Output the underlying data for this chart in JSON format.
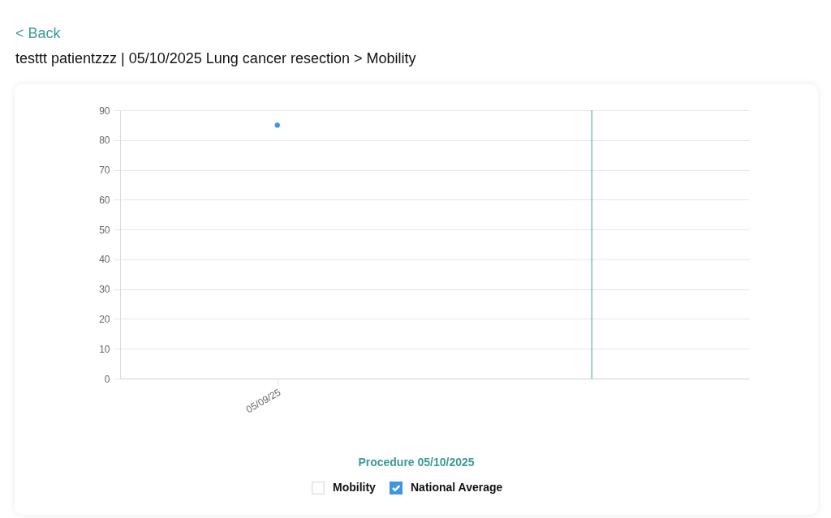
{
  "chart_data": {
    "type": "line",
    "title": "testtt patientzzz | 05/10/2025 Lung cancer resection > Mobility",
    "annotations": [
      "< Back"
    ],
    "categories": [
      "05/09/25",
      null
    ],
    "series": [
      {
        "name": "Mobility",
        "values": [
          null,
          null
        ]
      },
      {
        "name": "National Average",
        "color": "#3e95e3",
        "values": [
          85,
          null
        ]
      }
    ],
    "ylim": [
      0,
      90
    ],
    "yticks": [
      0,
      10,
      20,
      30,
      40,
      50,
      60,
      70,
      80,
      90
    ],
    "ref_lines": [
      {
        "axis": "x",
        "value": null,
        "label": "Procedure 05/10/2025",
        "color": "#3a9a95"
      }
    ],
    "grid": "y",
    "legend": "bottom",
    "marker": "circle"
  }
}
